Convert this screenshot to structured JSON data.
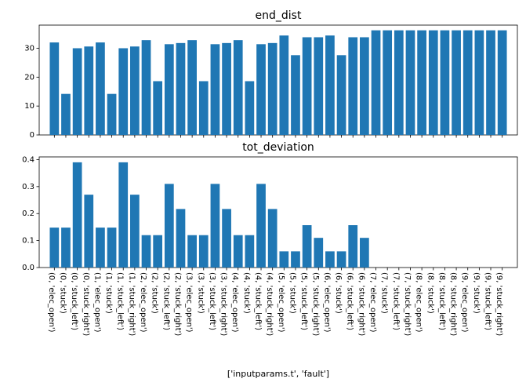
{
  "chart_data": [
    {
      "type": "bar",
      "title": "end_dist",
      "xlabel": "",
      "ylabel": "",
      "ylim": [
        0,
        38
      ],
      "yticks": [
        0,
        10,
        20,
        30
      ],
      "show_xtick_labels": false,
      "categories": [
        "(0, 'elec_open')",
        "(0, 'stuck')",
        "(0, 'stuck_left')",
        "(0, 'stuck_right')",
        "(1, 'elec_open')",
        "(1, 'stuck')",
        "(1, 'stuck_left')",
        "(1, 'stuck_right')",
        "(2, 'elec_open')",
        "(2, 'stuck')",
        "(2, 'stuck_left')",
        "(2, 'stuck_right')",
        "(3, 'elec_open')",
        "(3, 'stuck')",
        "(3, 'stuck_left')",
        "(3, 'stuck_right')",
        "(4, 'elec_open')",
        "(4, 'stuck')",
        "(4, 'stuck_left')",
        "(4, 'stuck_right')",
        "(5, 'elec_open')",
        "(5, 'stuck')",
        "(5, 'stuck_left')",
        "(5, 'stuck_right')",
        "(6, 'elec_open')",
        "(6, 'stuck')",
        "(6, 'stuck_left')",
        "(6, 'stuck_right')",
        "(7, 'elec_open')",
        "(7, 'stuck')",
        "(7, 'stuck_left')",
        "(7, 'stuck_right')",
        "(8, 'elec_open')",
        "(8, 'stuck')",
        "(8, 'stuck_left')",
        "(8, 'stuck_right')",
        "(9, 'elec_open')",
        "(9, 'stuck')",
        "(9, 'stuck_left')",
        "(9, 'stuck_right')"
      ],
      "values": [
        32.0,
        14.2,
        30.0,
        30.6,
        32.0,
        14.2,
        30.0,
        30.6,
        32.8,
        18.6,
        31.4,
        31.8,
        32.8,
        18.6,
        31.4,
        31.8,
        32.8,
        18.6,
        31.4,
        31.8,
        34.4,
        27.6,
        33.8,
        33.8,
        34.4,
        27.6,
        33.8,
        33.8,
        36.2,
        36.2,
        36.2,
        36.2,
        36.2,
        36.2,
        36.2,
        36.2,
        36.2,
        36.2,
        36.2,
        36.2
      ]
    },
    {
      "type": "bar",
      "title": "tot_deviation",
      "xlabel": "['inputparams.t', 'fault']",
      "ylabel": "",
      "ylim": [
        0,
        0.41
      ],
      "yticks": [
        "0.0",
        "0.1",
        "0.2",
        "0.3",
        "0.4"
      ],
      "show_xtick_labels": true,
      "categories": [
        "(0, 'elec_open')",
        "(0, 'stuck')",
        "(0, 'stuck_left')",
        "(0, 'stuck_right')",
        "(1, 'elec_open')",
        "(1, 'stuck')",
        "(1, 'stuck_left')",
        "(1, 'stuck_right')",
        "(2, 'elec_open')",
        "(2, 'stuck')",
        "(2, 'stuck_left')",
        "(2, 'stuck_right')",
        "(3, 'elec_open')",
        "(3, 'stuck')",
        "(3, 'stuck_left')",
        "(3, 'stuck_right')",
        "(4, 'elec_open')",
        "(4, 'stuck')",
        "(4, 'stuck_left')",
        "(4, 'stuck_right')",
        "(5, 'elec_open')",
        "(5, 'stuck')",
        "(5, 'stuck_left')",
        "(5, 'stuck_right')",
        "(6, 'elec_open')",
        "(6, 'stuck')",
        "(6, 'stuck_left')",
        "(6, 'stuck_right')",
        "(7, 'elec_open')",
        "(7, 'stuck')",
        "(7, 'stuck_left')",
        "(7, 'stuck_right')",
        "(8, 'elec_open')",
        "(8, 'stuck')",
        "(8, 'stuck_left')",
        "(8, 'stuck_right')",
        "(9, 'elec_open')",
        "(9, 'stuck')",
        "(9, 'stuck_left')",
        "(9, 'stuck_right')"
      ],
      "values": [
        0.148,
        0.148,
        0.39,
        0.27,
        0.148,
        0.148,
        0.39,
        0.27,
        0.12,
        0.12,
        0.31,
        0.217,
        0.12,
        0.12,
        0.31,
        0.217,
        0.12,
        0.12,
        0.31,
        0.217,
        0.06,
        0.06,
        0.157,
        0.11,
        0.06,
        0.06,
        0.157,
        0.11,
        0,
        0,
        0,
        0,
        0,
        0,
        0,
        0,
        0,
        0,
        0,
        0
      ]
    }
  ],
  "colors": {
    "bar": "#1f77b4",
    "axis": "#000000"
  }
}
